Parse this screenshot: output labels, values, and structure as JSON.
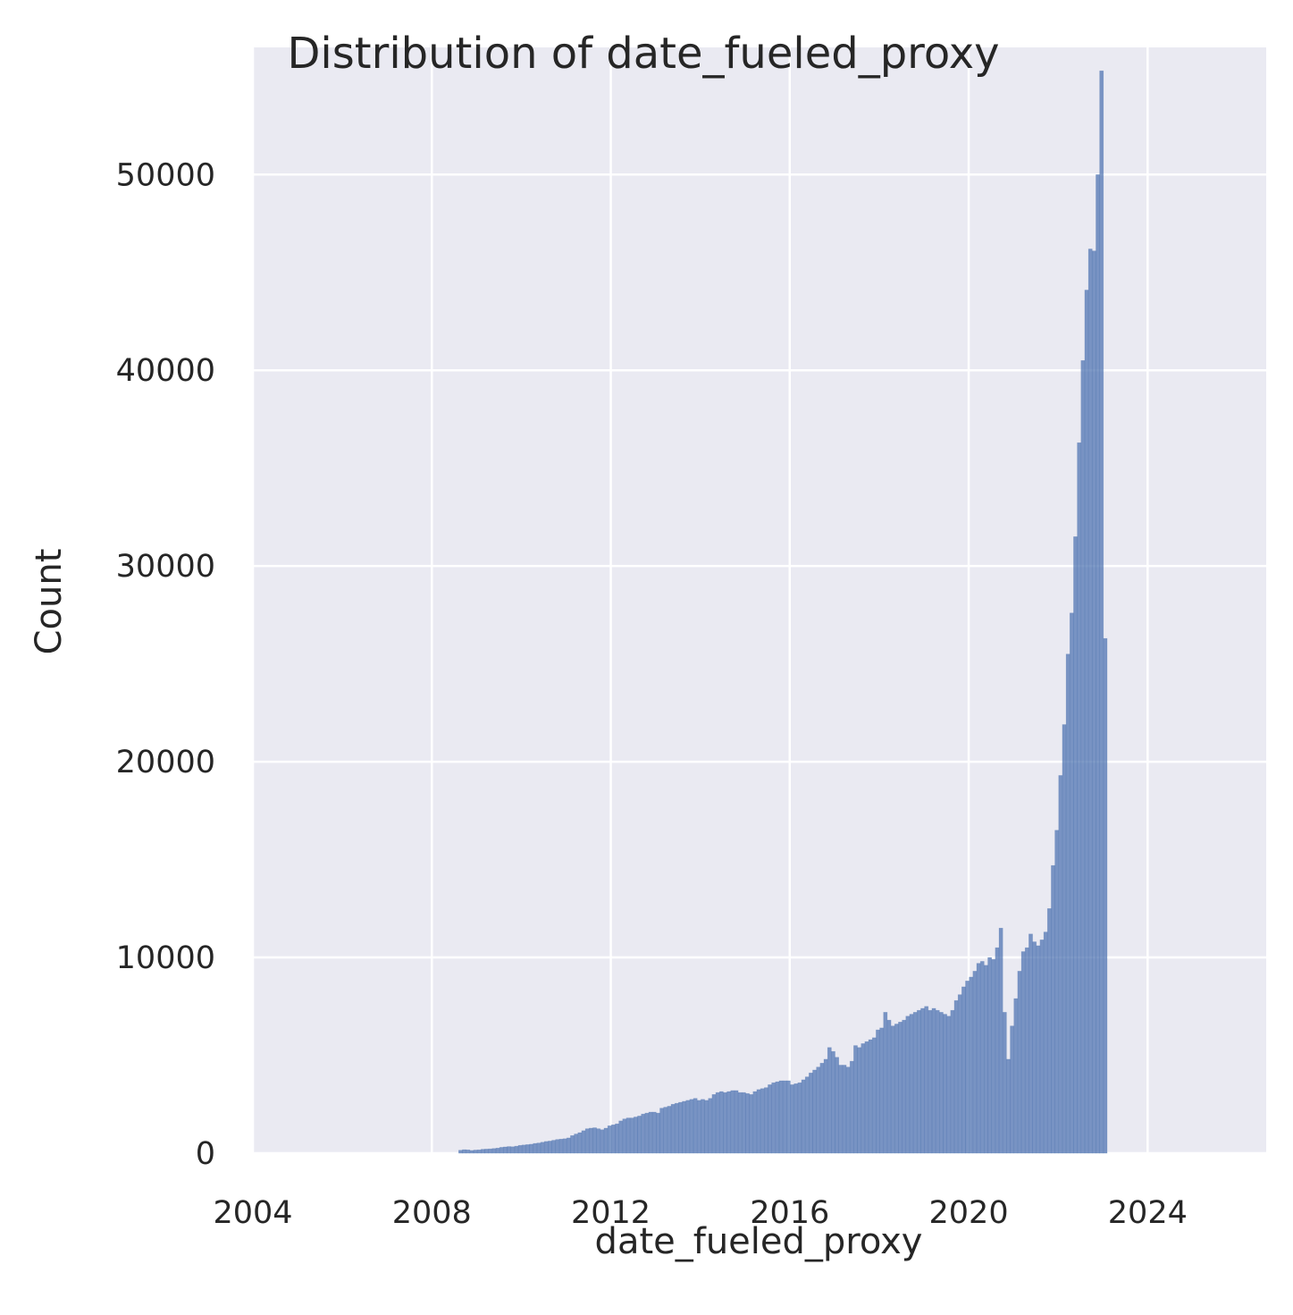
{
  "chart_data": {
    "type": "histogram",
    "title": "Distribution of date_fueled_proxy",
    "xlabel": "date_fueled_proxy",
    "ylabel": "Count",
    "xlim": [
      2004,
      2026.65
    ],
    "ylim": [
      0,
      56500
    ],
    "grid": true,
    "bar_color": "#4c72b0",
    "background_color": "#eaeaf2",
    "grid_color": "#ffffff",
    "x_ticks": [
      2004,
      2008,
      2012,
      2016,
      2020,
      2024
    ],
    "x_tick_labels": [
      "2004",
      "2008",
      "2012",
      "2016",
      "2020",
      "2024"
    ],
    "y_ticks": [
      0,
      10000,
      20000,
      30000,
      40000,
      50000
    ],
    "y_tick_labels": [
      "0",
      "10000",
      "20000",
      "30000",
      "40000",
      "50000"
    ],
    "bin_start": 2008.6,
    "bin_width": 0.0833,
    "counts": [
      150,
      180,
      170,
      140,
      160,
      170,
      200,
      210,
      220,
      240,
      260,
      300,
      320,
      340,
      330,
      360,
      400,
      420,
      440,
      460,
      500,
      520,
      560,
      600,
      620,
      660,
      700,
      720,
      740,
      780,
      900,
      980,
      1050,
      1150,
      1250,
      1280,
      1300,
      1250,
      1200,
      1280,
      1400,
      1450,
      1500,
      1650,
      1750,
      1800,
      1800,
      1850,
      1900,
      2000,
      2050,
      2100,
      2100,
      2050,
      2300,
      2350,
      2400,
      2500,
      2550,
      2600,
      2650,
      2700,
      2750,
      2800,
      2700,
      2750,
      2700,
      2800,
      3000,
      3100,
      3150,
      3100,
      3150,
      3200,
      3200,
      3100,
      3100,
      3050,
      3000,
      3150,
      3250,
      3300,
      3350,
      3500,
      3600,
      3650,
      3700,
      3700,
      3700,
      3500,
      3550,
      3600,
      3750,
      3900,
      4100,
      4250,
      4400,
      4600,
      4800,
      5400,
      5200,
      4900,
      4500,
      4500,
      4400,
      4700,
      5500,
      5400,
      5600,
      5700,
      5800,
      5900,
      6300,
      6400,
      7200,
      6800,
      6500,
      6600,
      6700,
      6800,
      7000,
      7100,
      7200,
      7300,
      7400,
      7500,
      7300,
      7400,
      7300,
      7200,
      7100,
      7000,
      7300,
      7800,
      8100,
      8500,
      8800,
      9000,
      9300,
      9700,
      9800,
      9600,
      10000,
      9900,
      10500,
      11500,
      7200,
      4800,
      6500,
      7900,
      9300,
      10300,
      10500,
      11200,
      10800,
      10600,
      10900,
      11300,
      12500,
      14700,
      16500,
      19300,
      21900,
      25500,
      27600,
      31500,
      36300,
      40500,
      44100,
      46200,
      46100,
      50000,
      55300,
      26300
    ]
  }
}
